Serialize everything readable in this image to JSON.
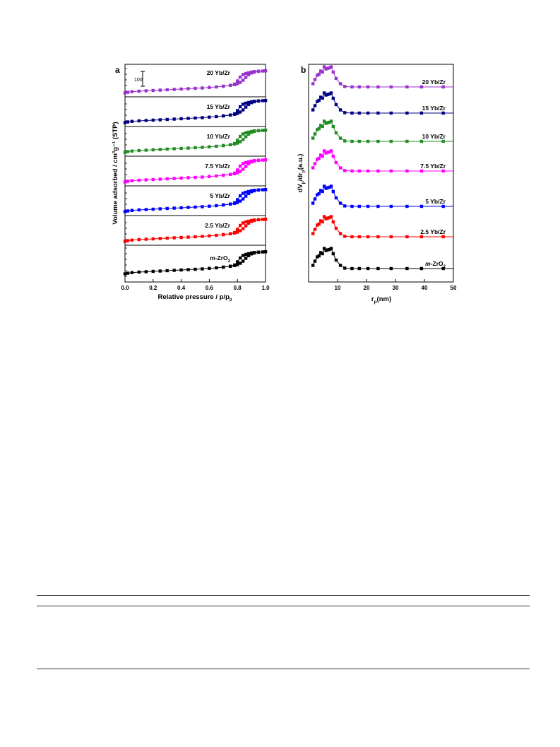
{
  "chart_data": [
    {
      "type": "line",
      "panel_label": "a",
      "xlabel": "Relative pressure / p/p",
      "xlabel_sub": "0",
      "ylabel": "Volume adsorbed / cm³g⁻¹ (STP)",
      "xlim": [
        0,
        1.0
      ],
      "x_ticks": [
        "0.0",
        "0.2",
        "0.4",
        "0.6",
        "0.8",
        "1.0"
      ],
      "scale_bar_label": "100",
      "grid": false,
      "series": [
        {
          "name": "20 Yb/Zr",
          "color": "#9932CC"
        },
        {
          "name": "15 Yb/Zr",
          "color": "#000080"
        },
        {
          "name": "10 Yb/Zr",
          "color": "#228B22"
        },
        {
          "name": "7.5 Yb/Zr",
          "color": "#FF00FF"
        },
        {
          "name": "5 Yb/Zr",
          "color": "#0000FF"
        },
        {
          "name": "2.5 Yb/Zr",
          "color": "#FF0000"
        },
        {
          "name": "m-ZrO2",
          "label_italic": "m",
          "label_main": "-ZrO",
          "label_sub": "2",
          "color": "#000000"
        }
      ],
      "x": [
        0.0,
        0.02,
        0.05,
        0.1,
        0.15,
        0.2,
        0.25,
        0.3,
        0.35,
        0.4,
        0.45,
        0.5,
        0.55,
        0.6,
        0.65,
        0.7,
        0.75,
        0.78,
        0.8,
        0.82,
        0.84,
        0.86,
        0.88,
        0.9,
        0.92,
        0.95,
        0.98,
        1.0
      ],
      "adsorption_y": [
        2,
        6,
        9,
        12,
        14,
        16,
        18,
        20,
        22,
        24,
        26,
        28,
        30,
        33,
        36,
        40,
        45,
        49,
        54,
        62,
        74,
        90,
        105,
        115,
        120,
        124,
        126,
        127
      ],
      "desorption_x": [
        1.0,
        0.95,
        0.92,
        0.9,
        0.88,
        0.86,
        0.84,
        0.82,
        0.8,
        0.78,
        0.75,
        0.7
      ],
      "desorption_y": [
        127,
        125,
        123,
        120,
        116,
        112,
        106,
        92,
        70,
        52,
        45,
        40
      ]
    },
    {
      "type": "line",
      "panel_label": "b",
      "xlabel": "r",
      "xlabel_sub": "p",
      "xlabel_unit": "(nm)",
      "ylabel_main": "dV",
      "ylabel_sub1": "p",
      "ylabel_mid": "/dr",
      "ylabel_sub2": "p",
      "ylabel_unit": "(a.u.)",
      "xlim": [
        0,
        50
      ],
      "x_ticks": [
        "10",
        "20",
        "30",
        "40",
        "50"
      ],
      "grid": false,
      "series": [
        {
          "name": "20 Yb/Zr",
          "color": "#9932CC"
        },
        {
          "name": "15 Yb/Zr",
          "color": "#000080"
        },
        {
          "name": "10 Yb/Zr",
          "color": "#228B22"
        },
        {
          "name": "7.5 Yb/Zr",
          "color": "#FF00FF"
        },
        {
          "name": "5 Yb/Zr",
          "color": "#0000FF"
        },
        {
          "name": "2.5 Yb/Zr",
          "color": "#FF0000"
        },
        {
          "name": "m-ZrO2",
          "label_italic": "m",
          "label_main": "-ZrO",
          "label_sub": "2",
          "color": "#000000"
        }
      ],
      "x": [
        1.5,
        2.2,
        3.0,
        3.6,
        4.2,
        4.8,
        5.4,
        6.0,
        6.6,
        7.2,
        7.8,
        8.5,
        9.5,
        11,
        12.5,
        15,
        17.5,
        20.5,
        24,
        28.5,
        34,
        39,
        46.5,
        50
      ],
      "y": [
        0.15,
        0.35,
        0.55,
        0.6,
        0.75,
        0.7,
        0.95,
        0.85,
        0.88,
        0.9,
        0.95,
        0.7,
        0.4,
        0.15,
        0.02,
        0.0,
        0.0,
        0.0,
        0.0,
        0.0,
        0.0,
        0.0,
        0.0,
        0.0
      ]
    }
  ]
}
